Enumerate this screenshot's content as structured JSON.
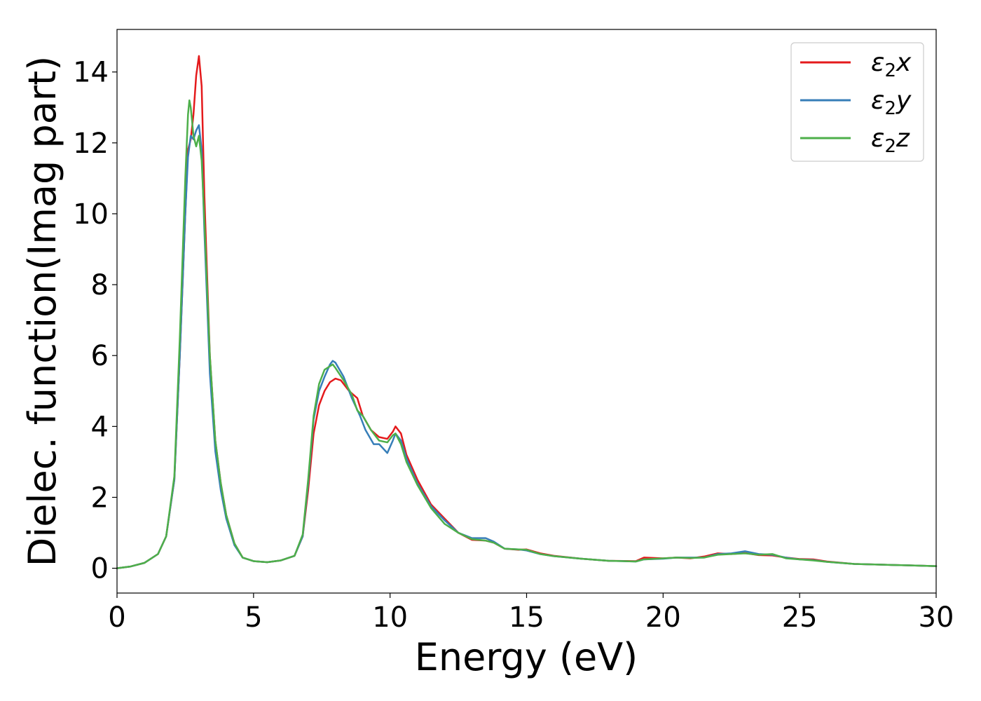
{
  "chart_data": {
    "type": "line",
    "title": "",
    "xlabel": "Energy (eV)",
    "ylabel": "Dielec. function(Imag part)",
    "xlim": [
      0,
      30
    ],
    "ylim": [
      -0.7,
      15.2
    ],
    "xticks": [
      0,
      5,
      10,
      15,
      20,
      25,
      30
    ],
    "yticks": [
      0,
      2,
      4,
      6,
      8,
      10,
      12,
      14
    ],
    "grid": false,
    "legend_position": "top-right",
    "series": [
      {
        "name": "ε₂x",
        "legend_main": "ε",
        "legend_sub": "2",
        "legend_suffix": "x",
        "color": "#e41a1c",
        "points": [
          [
            0,
            0
          ],
          [
            0.5,
            0.05
          ],
          [
            1,
            0.15
          ],
          [
            1.5,
            0.4
          ],
          [
            1.8,
            0.9
          ],
          [
            2.1,
            2.5
          ],
          [
            2.3,
            6.0
          ],
          [
            2.5,
            10.0
          ],
          [
            2.6,
            11.8
          ],
          [
            2.7,
            12.1
          ],
          [
            2.8,
            12.8
          ],
          [
            2.9,
            13.9
          ],
          [
            3.0,
            14.45
          ],
          [
            3.1,
            13.6
          ],
          [
            3.2,
            10.5
          ],
          [
            3.4,
            6.0
          ],
          [
            3.6,
            3.6
          ],
          [
            3.8,
            2.4
          ],
          [
            4.0,
            1.5
          ],
          [
            4.3,
            0.7
          ],
          [
            4.6,
            0.3
          ],
          [
            5.0,
            0.2
          ],
          [
            5.5,
            0.17
          ],
          [
            6.0,
            0.22
          ],
          [
            6.5,
            0.35
          ],
          [
            6.8,
            0.9
          ],
          [
            7.0,
            2.2
          ],
          [
            7.2,
            3.8
          ],
          [
            7.4,
            4.6
          ],
          [
            7.6,
            5.0
          ],
          [
            7.8,
            5.25
          ],
          [
            8.0,
            5.35
          ],
          [
            8.2,
            5.3
          ],
          [
            8.5,
            5.0
          ],
          [
            8.8,
            4.8
          ],
          [
            9.0,
            4.3
          ],
          [
            9.3,
            3.9
          ],
          [
            9.6,
            3.7
          ],
          [
            9.9,
            3.65
          ],
          [
            10.1,
            3.85
          ],
          [
            10.2,
            4.0
          ],
          [
            10.4,
            3.8
          ],
          [
            10.6,
            3.2
          ],
          [
            11.0,
            2.5
          ],
          [
            11.5,
            1.8
          ],
          [
            12.0,
            1.4
          ],
          [
            12.5,
            1.0
          ],
          [
            13.0,
            0.8
          ],
          [
            13.5,
            0.78
          ],
          [
            13.8,
            0.72
          ],
          [
            14.2,
            0.55
          ],
          [
            14.7,
            0.52
          ],
          [
            15.0,
            0.53
          ],
          [
            15.5,
            0.42
          ],
          [
            16.0,
            0.35
          ],
          [
            17.0,
            0.27
          ],
          [
            18.0,
            0.21
          ],
          [
            19.0,
            0.2
          ],
          [
            19.3,
            0.3
          ],
          [
            20.0,
            0.28
          ],
          [
            20.5,
            0.3
          ],
          [
            21.0,
            0.28
          ],
          [
            21.5,
            0.33
          ],
          [
            22.0,
            0.42
          ],
          [
            22.5,
            0.4
          ],
          [
            23.0,
            0.43
          ],
          [
            23.5,
            0.37
          ],
          [
            24.0,
            0.36
          ],
          [
            24.5,
            0.3
          ],
          [
            25.0,
            0.26
          ],
          [
            25.5,
            0.25
          ],
          [
            26.0,
            0.19
          ],
          [
            27.0,
            0.12
          ],
          [
            28.0,
            0.1
          ],
          [
            29.0,
            0.08
          ],
          [
            30.0,
            0.06
          ]
        ]
      },
      {
        "name": "ε₂y",
        "legend_main": "ε",
        "legend_sub": "2",
        "legend_suffix": "y",
        "color": "#377eb8",
        "points": [
          [
            0,
            0
          ],
          [
            0.5,
            0.05
          ],
          [
            1,
            0.15
          ],
          [
            1.5,
            0.4
          ],
          [
            1.8,
            0.9
          ],
          [
            2.1,
            2.5
          ],
          [
            2.3,
            6.0
          ],
          [
            2.5,
            10.0
          ],
          [
            2.6,
            11.6
          ],
          [
            2.7,
            12.2
          ],
          [
            2.8,
            12.1
          ],
          [
            2.9,
            12.35
          ],
          [
            3.0,
            12.5
          ],
          [
            3.1,
            11.8
          ],
          [
            3.2,
            9.5
          ],
          [
            3.4,
            5.5
          ],
          [
            3.6,
            3.3
          ],
          [
            3.8,
            2.2
          ],
          [
            4.0,
            1.4
          ],
          [
            4.3,
            0.65
          ],
          [
            4.6,
            0.3
          ],
          [
            5.0,
            0.2
          ],
          [
            5.5,
            0.17
          ],
          [
            6.0,
            0.22
          ],
          [
            6.5,
            0.35
          ],
          [
            6.8,
            0.9
          ],
          [
            7.0,
            2.4
          ],
          [
            7.2,
            4.2
          ],
          [
            7.4,
            5.0
          ],
          [
            7.6,
            5.4
          ],
          [
            7.8,
            5.75
          ],
          [
            7.9,
            5.85
          ],
          [
            8.0,
            5.8
          ],
          [
            8.3,
            5.4
          ],
          [
            8.6,
            4.8
          ],
          [
            8.9,
            4.3
          ],
          [
            9.1,
            3.9
          ],
          [
            9.4,
            3.5
          ],
          [
            9.6,
            3.5
          ],
          [
            9.9,
            3.25
          ],
          [
            10.1,
            3.6
          ],
          [
            10.2,
            3.8
          ],
          [
            10.4,
            3.6
          ],
          [
            10.6,
            3.1
          ],
          [
            11.0,
            2.4
          ],
          [
            11.5,
            1.75
          ],
          [
            12.0,
            1.35
          ],
          [
            12.5,
            1.0
          ],
          [
            13.0,
            0.85
          ],
          [
            13.5,
            0.85
          ],
          [
            13.8,
            0.75
          ],
          [
            14.2,
            0.55
          ],
          [
            14.7,
            0.53
          ],
          [
            15.0,
            0.5
          ],
          [
            15.5,
            0.4
          ],
          [
            16.0,
            0.34
          ],
          [
            17.0,
            0.27
          ],
          [
            18.0,
            0.21
          ],
          [
            19.0,
            0.19
          ],
          [
            19.3,
            0.25
          ],
          [
            20.0,
            0.27
          ],
          [
            20.5,
            0.3
          ],
          [
            21.0,
            0.3
          ],
          [
            21.5,
            0.3
          ],
          [
            22.0,
            0.4
          ],
          [
            22.5,
            0.42
          ],
          [
            23.0,
            0.48
          ],
          [
            23.5,
            0.4
          ],
          [
            24.0,
            0.38
          ],
          [
            24.5,
            0.3
          ],
          [
            25.0,
            0.25
          ],
          [
            25.5,
            0.23
          ],
          [
            26.0,
            0.18
          ],
          [
            27.0,
            0.12
          ],
          [
            28.0,
            0.1
          ],
          [
            29.0,
            0.08
          ],
          [
            30.0,
            0.06
          ]
        ]
      },
      {
        "name": "ε₂z",
        "legend_main": "ε",
        "legend_sub": "2",
        "legend_suffix": "z",
        "color": "#4daf4a",
        "points": [
          [
            0,
            0
          ],
          [
            0.5,
            0.05
          ],
          [
            1,
            0.15
          ],
          [
            1.5,
            0.4
          ],
          [
            1.8,
            0.9
          ],
          [
            2.1,
            2.6
          ],
          [
            2.3,
            6.5
          ],
          [
            2.5,
            11.0
          ],
          [
            2.6,
            12.8
          ],
          [
            2.65,
            13.2
          ],
          [
            2.7,
            13.0
          ],
          [
            2.8,
            12.2
          ],
          [
            2.9,
            11.9
          ],
          [
            3.0,
            12.2
          ],
          [
            3.1,
            11.5
          ],
          [
            3.2,
            9.8
          ],
          [
            3.4,
            6.0
          ],
          [
            3.6,
            3.6
          ],
          [
            3.8,
            2.4
          ],
          [
            4.0,
            1.5
          ],
          [
            4.3,
            0.7
          ],
          [
            4.6,
            0.3
          ],
          [
            5.0,
            0.2
          ],
          [
            5.5,
            0.17
          ],
          [
            6.0,
            0.22
          ],
          [
            6.5,
            0.35
          ],
          [
            6.8,
            0.95
          ],
          [
            7.0,
            2.5
          ],
          [
            7.2,
            4.3
          ],
          [
            7.4,
            5.2
          ],
          [
            7.6,
            5.6
          ],
          [
            7.8,
            5.7
          ],
          [
            7.9,
            5.75
          ],
          [
            8.0,
            5.65
          ],
          [
            8.3,
            5.3
          ],
          [
            8.6,
            4.9
          ],
          [
            8.8,
            4.45
          ],
          [
            9.0,
            4.3
          ],
          [
            9.3,
            3.9
          ],
          [
            9.6,
            3.6
          ],
          [
            9.9,
            3.55
          ],
          [
            10.1,
            3.75
          ],
          [
            10.2,
            3.8
          ],
          [
            10.4,
            3.5
          ],
          [
            10.6,
            3.0
          ],
          [
            11.0,
            2.35
          ],
          [
            11.5,
            1.7
          ],
          [
            12.0,
            1.25
          ],
          [
            12.5,
            1.0
          ],
          [
            13.0,
            0.82
          ],
          [
            13.5,
            0.78
          ],
          [
            13.8,
            0.72
          ],
          [
            14.2,
            0.55
          ],
          [
            14.7,
            0.53
          ],
          [
            15.0,
            0.52
          ],
          [
            15.5,
            0.4
          ],
          [
            16.0,
            0.34
          ],
          [
            17.0,
            0.27
          ],
          [
            18.0,
            0.21
          ],
          [
            19.0,
            0.19
          ],
          [
            19.3,
            0.25
          ],
          [
            20.0,
            0.28
          ],
          [
            20.5,
            0.3
          ],
          [
            21.0,
            0.29
          ],
          [
            21.5,
            0.3
          ],
          [
            22.0,
            0.38
          ],
          [
            22.5,
            0.4
          ],
          [
            23.0,
            0.42
          ],
          [
            23.5,
            0.38
          ],
          [
            24.0,
            0.4
          ],
          [
            24.5,
            0.28
          ],
          [
            25.0,
            0.25
          ],
          [
            25.5,
            0.22
          ],
          [
            26.0,
            0.18
          ],
          [
            27.0,
            0.12
          ],
          [
            28.0,
            0.1
          ],
          [
            29.0,
            0.08
          ],
          [
            30.0,
            0.06
          ]
        ]
      }
    ]
  }
}
